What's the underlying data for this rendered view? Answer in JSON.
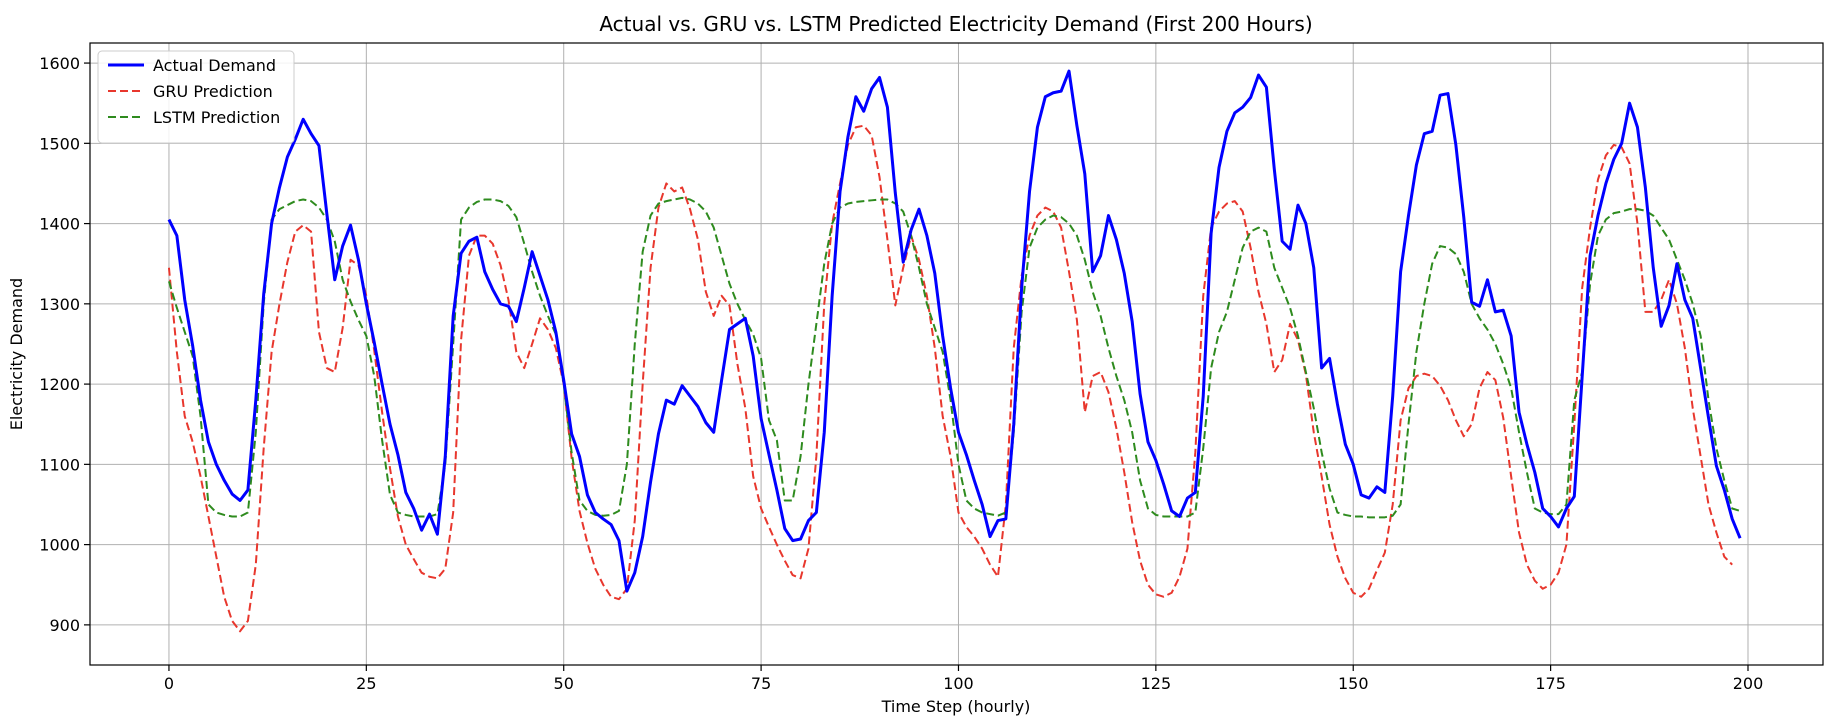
{
  "chart_data": {
    "type": "line",
    "title": "Actual vs. GRU vs. LSTM Predicted Electricity Demand (First 200 Hours)",
    "xlabel": "Time Step (hourly)",
    "ylabel": "Electricity Demand",
    "xlim": [
      -10,
      209.5
    ],
    "ylim": [
      850,
      1625
    ],
    "xticks": [
      0,
      25,
      50,
      75,
      100,
      125,
      150,
      175,
      200
    ],
    "yticks": [
      900,
      1000,
      1100,
      1200,
      1300,
      1400,
      1500,
      1600
    ],
    "grid": true,
    "legend_position": "top-left",
    "series": [
      {
        "name": "Actual Demand",
        "color": "#0000ff",
        "style": "solid",
        "values": [
          1405,
          1385,
          1305,
          1248,
          1180,
          1128,
          1100,
          1080,
          1063,
          1055,
          1068,
          1180,
          1312,
          1400,
          1445,
          1483,
          1505,
          1530,
          1512,
          1497,
          1412,
          1330,
          1372,
          1398,
          1355,
          1300,
          1252,
          1200,
          1150,
          1112,
          1065,
          1045,
          1018,
          1038,
          1013,
          1110,
          1285,
          1363,
          1378,
          1383,
          1340,
          1318,
          1300,
          1297,
          1278,
          1320,
          1365,
          1335,
          1305,
          1265,
          1205,
          1138,
          1110,
          1062,
          1040,
          1032,
          1025,
          1005,
          942,
          965,
          1010,
          1078,
          1138,
          1180,
          1175,
          1198,
          1185,
          1172,
          1152,
          1140,
          1205,
          1268,
          1275,
          1282,
          1235,
          1157,
          1112,
          1068,
          1020,
          1005,
          1007,
          1030,
          1040,
          1140,
          1310,
          1440,
          1508,
          1558,
          1540,
          1568,
          1582,
          1545,
          1438,
          1352,
          1392,
          1418,
          1385,
          1338,
          1260,
          1195,
          1140,
          1112,
          1080,
          1050,
          1010,
          1030,
          1032,
          1150,
          1320,
          1440,
          1520,
          1558,
          1563,
          1565,
          1590,
          1522,
          1462,
          1340,
          1360,
          1410,
          1380,
          1338,
          1278,
          1188,
          1128,
          1105,
          1075,
          1042,
          1035,
          1058,
          1065,
          1185,
          1388,
          1470,
          1515,
          1538,
          1545,
          1557,
          1585,
          1570,
          1468,
          1378,
          1368,
          1423,
          1400,
          1345,
          1220,
          1232,
          1175,
          1125,
          1100,
          1062,
          1058,
          1072,
          1065,
          1185,
          1340,
          1410,
          1473,
          1512,
          1515,
          1560,
          1562,
          1498,
          1408,
          1302,
          1297,
          1330,
          1290,
          1292,
          1260,
          1165,
          1125,
          1090,
          1045,
          1035,
          1022,
          1045,
          1060,
          1210,
          1360,
          1410,
          1450,
          1480,
          1500,
          1550,
          1520,
          1445,
          1345,
          1272,
          1298,
          1350,
          1305,
          1282,
          1220,
          1158,
          1098,
          1068,
          1032,
          1008
        ]
      },
      {
        "name": "GRU Prediction",
        "color": "#e8372d",
        "style": "dashed",
        "values": [
          1345,
          1240,
          1160,
          1128,
          1085,
          1035,
          985,
          935,
          905,
          892,
          905,
          975,
          1120,
          1240,
          1300,
          1352,
          1390,
          1398,
          1390,
          1265,
          1220,
          1215,
          1270,
          1355,
          1348,
          1310,
          1242,
          1165,
          1095,
          1035,
          1000,
          982,
          965,
          960,
          958,
          970,
          1040,
          1255,
          1360,
          1385,
          1385,
          1375,
          1348,
          1305,
          1240,
          1220,
          1250,
          1282,
          1268,
          1245,
          1200,
          1108,
          1042,
          1002,
          970,
          950,
          935,
          932,
          945,
          1030,
          1200,
          1345,
          1420,
          1450,
          1440,
          1445,
          1418,
          1380,
          1315,
          1285,
          1310,
          1298,
          1225,
          1170,
          1085,
          1045,
          1022,
          1000,
          980,
          962,
          958,
          995,
          1110,
          1300,
          1400,
          1450,
          1498,
          1520,
          1522,
          1510,
          1458,
          1380,
          1298,
          1345,
          1385,
          1355,
          1310,
          1245,
          1160,
          1110,
          1040,
          1022,
          1010,
          995,
          975,
          960,
          1050,
          1245,
          1335,
          1385,
          1410,
          1420,
          1415,
          1395,
          1340,
          1280,
          1165,
          1210,
          1215,
          1190,
          1145,
          1090,
          1028,
          980,
          950,
          938,
          935,
          940,
          960,
          995,
          1115,
          1310,
          1395,
          1415,
          1425,
          1428,
          1415,
          1370,
          1315,
          1275,
          1215,
          1230,
          1275,
          1255,
          1212,
          1140,
          1085,
          1025,
          985,
          958,
          940,
          935,
          945,
          968,
          990,
          1050,
          1155,
          1195,
          1210,
          1213,
          1210,
          1198,
          1180,
          1155,
          1135,
          1150,
          1195,
          1215,
          1205,
          1158,
          1085,
          1015,
          975,
          955,
          945,
          950,
          965,
          1000,
          1150,
          1320,
          1395,
          1455,
          1485,
          1498,
          1495,
          1475,
          1400,
          1290,
          1290,
          1305,
          1330,
          1300,
          1245,
          1170,
          1110,
          1050,
          1015,
          985,
          975
        ]
      },
      {
        "name": "LSTM Prediction",
        "color": "#2e8b1e",
        "style": "dashed",
        "values": [
          1328,
          1295,
          1265,
          1235,
          1160,
          1050,
          1040,
          1037,
          1035,
          1035,
          1040,
          1140,
          1300,
          1405,
          1418,
          1423,
          1428,
          1430,
          1428,
          1420,
          1405,
          1378,
          1330,
          1303,
          1280,
          1260,
          1210,
          1130,
          1062,
          1040,
          1037,
          1035,
          1035,
          1035,
          1038,
          1100,
          1250,
          1405,
          1420,
          1427,
          1430,
          1430,
          1428,
          1422,
          1408,
          1375,
          1340,
          1310,
          1285,
          1262,
          1200,
          1115,
          1055,
          1042,
          1037,
          1036,
          1037,
          1042,
          1100,
          1250,
          1365,
          1410,
          1425,
          1428,
          1430,
          1432,
          1430,
          1425,
          1415,
          1395,
          1360,
          1325,
          1300,
          1280,
          1262,
          1232,
          1155,
          1130,
          1055,
          1055,
          1110,
          1200,
          1275,
          1350,
          1400,
          1420,
          1425,
          1427,
          1428,
          1429,
          1430,
          1430,
          1425,
          1415,
          1385,
          1345,
          1300,
          1270,
          1240,
          1180,
          1100,
          1055,
          1045,
          1040,
          1038,
          1036,
          1040,
          1140,
          1290,
          1370,
          1395,
          1405,
          1410,
          1408,
          1400,
          1385,
          1355,
          1315,
          1285,
          1245,
          1210,
          1180,
          1140,
          1080,
          1045,
          1037,
          1035,
          1035,
          1035,
          1035,
          1040,
          1120,
          1220,
          1265,
          1290,
          1330,
          1370,
          1390,
          1395,
          1390,
          1345,
          1320,
          1295,
          1260,
          1215,
          1170,
          1115,
          1070,
          1040,
          1037,
          1035,
          1035,
          1034,
          1034,
          1034,
          1036,
          1050,
          1150,
          1240,
          1300,
          1350,
          1372,
          1370,
          1362,
          1340,
          1300,
          1282,
          1268,
          1250,
          1225,
          1195,
          1140,
          1090,
          1045,
          1040,
          1038,
          1038,
          1050,
          1180,
          1215,
          1325,
          1385,
          1405,
          1413,
          1415,
          1418,
          1418,
          1416,
          1410,
          1395,
          1380,
          1355,
          1330,
          1300,
          1260,
          1180,
          1120,
          1080,
          1045,
          1042
        ]
      }
    ]
  }
}
